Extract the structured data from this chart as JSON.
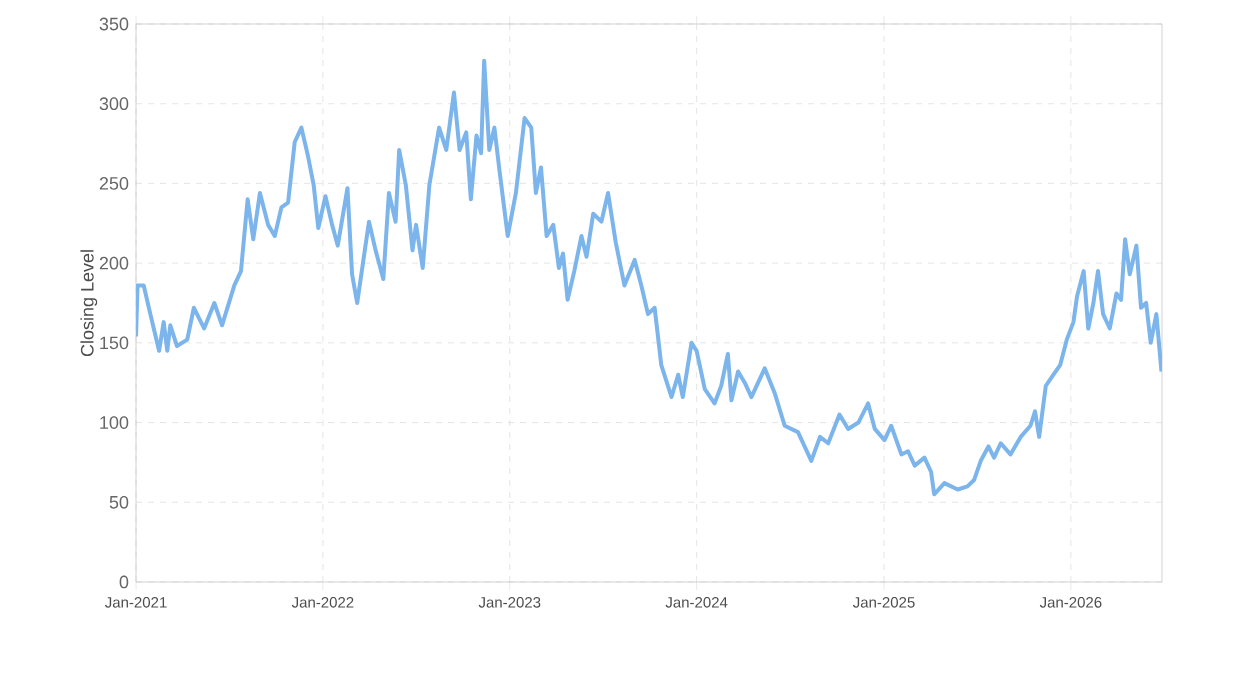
{
  "chart_data": {
    "type": "line",
    "ylabel": "Closing Level",
    "color": "#7cb5ec",
    "grid": true,
    "marker": "none",
    "xlim": [
      "2021-01-01",
      "2026-06-28"
    ],
    "ylim": [
      0,
      350
    ],
    "yticks": [
      0,
      50,
      100,
      150,
      200,
      250,
      300,
      350
    ],
    "xticks": [
      {
        "value": "2021-01-01",
        "label": "Jan-2021"
      },
      {
        "value": "2022-01-01",
        "label": "Jan-2022"
      },
      {
        "value": "2023-01-01",
        "label": "Jan-2023"
      },
      {
        "value": "2024-01-01",
        "label": "Jan-2024"
      },
      {
        "value": "2025-01-01",
        "label": "Jan-2025"
      },
      {
        "value": "2026-01-01",
        "label": "Jan-2026"
      }
    ],
    "x": [
      "2021-01-01",
      "2021-01-04",
      "2021-01-16",
      "2021-01-29",
      "2021-02-15",
      "2021-02-24",
      "2021-03-03",
      "2021-03-09",
      "2021-03-22",
      "2021-04-11",
      "2021-04-24",
      "2021-05-14",
      "2021-06-03",
      "2021-06-18",
      "2021-07-12",
      "2021-07-25",
      "2021-08-07",
      "2021-08-18",
      "2021-08-31",
      "2021-09-16",
      "2021-09-29",
      "2021-10-12",
      "2021-10-25",
      "2021-11-07",
      "2021-11-20",
      "2021-12-03",
      "2021-12-14",
      "2021-12-23",
      "2022-01-06",
      "2022-01-19",
      "2022-01-30",
      "2022-02-18",
      "2022-02-27",
      "2022-03-09",
      "2022-03-18",
      "2022-04-01",
      "2022-04-14",
      "2022-04-29",
      "2022-05-10",
      "2022-05-23",
      "2022-05-30",
      "2022-06-12",
      "2022-06-25",
      "2022-07-02",
      "2022-07-15",
      "2022-07-28",
      "2022-08-16",
      "2022-08-30",
      "2022-09-14",
      "2022-09-25",
      "2022-10-08",
      "2022-10-17",
      "2022-10-28",
      "2022-11-06",
      "2022-11-12",
      "2022-11-22",
      "2022-12-02",
      "2022-12-12",
      "2022-12-28",
      "2023-01-13",
      "2023-01-30",
      "2023-02-12",
      "2023-02-21",
      "2023-03-03",
      "2023-03-14",
      "2023-03-27",
      "2023-04-07",
      "2023-04-15",
      "2023-04-24",
      "2023-05-07",
      "2023-05-21",
      "2023-05-31",
      "2023-06-13",
      "2023-06-29",
      "2023-07-12",
      "2023-07-27",
      "2023-08-13",
      "2023-09-02",
      "2023-09-15",
      "2023-09-28",
      "2023-10-11",
      "2023-10-24",
      "2023-11-13",
      "2023-11-26",
      "2023-12-05",
      "2023-12-22",
      "2024-01-01",
      "2024-01-17",
      "2024-02-05",
      "2024-02-18",
      "2024-03-02",
      "2024-03-09",
      "2024-03-22",
      "2024-04-04",
      "2024-04-17",
      "2024-05-13",
      "2024-06-02",
      "2024-06-21",
      "2024-07-17",
      "2024-08-12",
      "2024-08-29",
      "2024-09-14",
      "2024-10-06",
      "2024-10-23",
      "2024-11-12",
      "2024-12-01",
      "2024-12-14",
      "2025-01-02",
      "2025-01-15",
      "2025-02-04",
      "2025-02-17",
      "2025-03-02",
      "2025-03-21",
      "2025-04-03",
      "2025-04-09",
      "2025-04-29",
      "2025-05-25",
      "2025-06-13",
      "2025-06-26",
      "2025-07-09",
      "2025-07-24",
      "2025-08-04",
      "2025-08-17",
      "2025-09-05",
      "2025-09-25",
      "2025-10-14",
      "2025-10-23",
      "2025-10-31",
      "2025-11-13",
      "2025-11-28",
      "2025-12-11",
      "2025-12-24",
      "2026-01-06",
      "2026-01-13",
      "2026-01-26",
      "2026-02-04",
      "2026-02-14",
      "2026-02-23",
      "2026-03-05",
      "2026-03-18",
      "2026-03-31",
      "2026-04-09",
      "2026-04-17",
      "2026-04-26",
      "2026-05-09",
      "2026-05-18",
      "2026-05-28",
      "2026-06-06",
      "2026-06-17",
      "2026-06-27"
    ],
    "values": [
      154,
      186,
      186,
      168,
      145,
      163,
      145,
      161,
      148,
      152,
      172,
      159,
      175,
      161,
      186,
      195,
      240,
      215,
      244,
      224,
      217,
      235,
      238,
      276,
      285,
      267,
      249,
      222,
      242,
      224,
      211,
      247,
      193,
      175,
      195,
      226,
      208,
      190,
      244,
      226,
      271,
      249,
      208,
      224,
      197,
      249,
      285,
      271,
      307,
      271,
      282,
      240,
      280,
      269,
      327,
      271,
      285,
      258,
      217,
      244,
      291,
      285,
      244,
      260,
      217,
      224,
      197,
      206,
      177,
      195,
      217,
      204,
      231,
      226,
      244,
      213,
      186,
      202,
      186,
      168,
      172,
      136,
      116,
      130,
      116,
      150,
      145,
      121,
      112,
      123,
      143,
      114,
      132,
      125,
      116,
      134,
      118,
      98,
      94,
      76,
      91,
      87,
      105,
      96,
      100,
      112,
      96,
      89,
      98,
      80,
      82,
      73,
      78,
      69,
      55,
      62,
      58,
      60,
      64,
      76,
      85,
      78,
      87,
      80,
      91,
      98,
      107,
      91,
      123,
      130,
      136,
      152,
      163,
      179,
      195,
      159,
      175,
      195,
      168,
      159,
      181,
      177,
      215,
      193,
      211,
      172,
      175,
      150,
      168,
      132
    ]
  }
}
